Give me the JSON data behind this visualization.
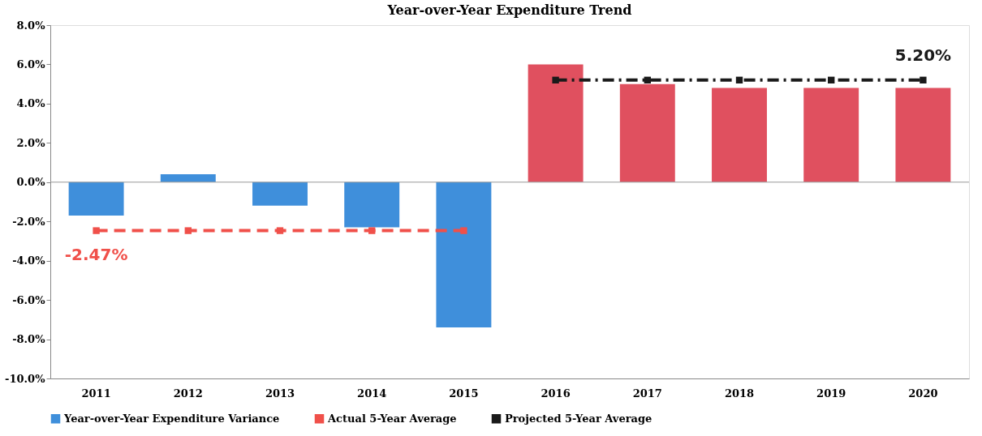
{
  "chart_data": {
    "type": "bar",
    "title": "Year-over-Year Expenditure Trend",
    "categories": [
      "2011",
      "2012",
      "2013",
      "2014",
      "2015",
      "2016",
      "2017",
      "2018",
      "2019",
      "2020"
    ],
    "series": [
      {
        "name": "Year-over-Year Expenditure Variance",
        "color": "#3f8fdb",
        "colors": [
          "#3f8fdb",
          "#3f8fdb",
          "#3f8fdb",
          "#3f8fdb",
          "#3f8fdb",
          "#e0505f",
          "#e0505f",
          "#e0505f",
          "#e0505f",
          "#e0505f"
        ],
        "values": [
          -1.7,
          0.4,
          -1.2,
          -2.3,
          -7.4,
          6.0,
          5.0,
          4.8,
          4.8,
          4.8
        ]
      },
      {
        "name": "Actual 5-Year Average",
        "type": "line",
        "color": "#f0504a",
        "line_style": "dashed",
        "values": [
          -2.47,
          -2.47,
          -2.47,
          -2.47,
          -2.47,
          null,
          null,
          null,
          null,
          null
        ]
      },
      {
        "name": "Projected 5-Year Average",
        "type": "line",
        "color": "#1a1a1a",
        "line_style": "dashdot",
        "values": [
          null,
          null,
          null,
          null,
          null,
          5.2,
          5.2,
          5.2,
          5.2,
          5.2
        ]
      }
    ],
    "annotations": [
      {
        "text": "-2.47%",
        "x": "2011",
        "y": -2.47
      },
      {
        "text": "5.20%",
        "x": "2020",
        "y": 5.2
      }
    ],
    "ylim": [
      -10,
      8
    ],
    "yticks": [
      {
        "value": -10,
        "label": "-10.0%"
      },
      {
        "value": -8,
        "label": "-8.0%"
      },
      {
        "value": -6,
        "label": "-6.0%"
      },
      {
        "value": -4,
        "label": "-4.0%"
      },
      {
        "value": -2,
        "label": "-2.0%"
      },
      {
        "value": 0,
        "label": "0.0%"
      },
      {
        "value": 2,
        "label": "2.0%"
      },
      {
        "value": 4,
        "label": "4.0%"
      },
      {
        "value": 6,
        "label": "6.0%"
      },
      {
        "value": 8,
        "label": "8.0%"
      }
    ],
    "ref_lines": [
      {
        "axis": "y",
        "value": 0,
        "color": "#999999"
      }
    ],
    "marker": "square",
    "legend": "bottom",
    "grid": false
  }
}
